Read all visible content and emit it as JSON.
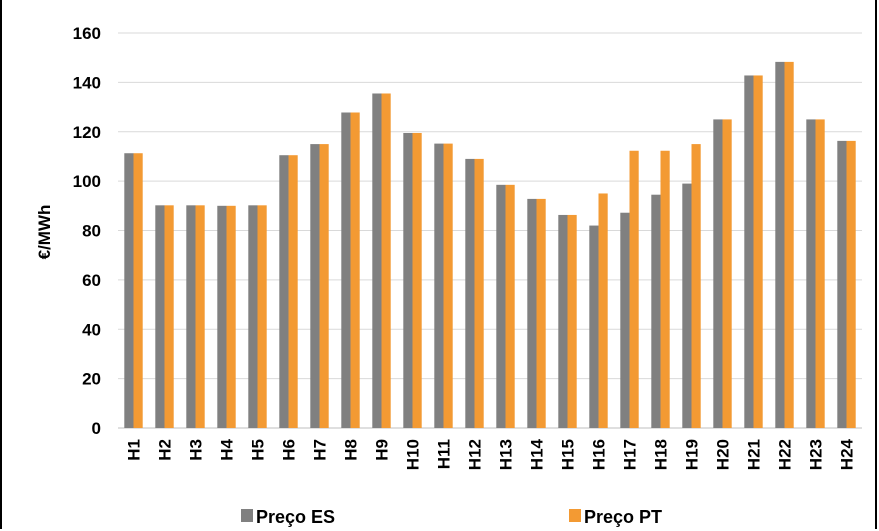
{
  "chart_data": {
    "type": "bar",
    "categories": [
      "H1",
      "H2",
      "H3",
      "H4",
      "H5",
      "H6",
      "H7",
      "H8",
      "H9",
      "H10",
      "H11",
      "H12",
      "H13",
      "H14",
      "H15",
      "H16",
      "H17",
      "H18",
      "H19",
      "H20",
      "H21",
      "H22",
      "H23",
      "H24"
    ],
    "series": [
      {
        "name": "Preço ES",
        "color": "#808080",
        "values": [
          111.3,
          90.2,
          90.2,
          90.0,
          90.2,
          110.5,
          115.0,
          127.8,
          135.5,
          119.5,
          115.2,
          109.0,
          98.5,
          92.8,
          86.3,
          82.0,
          87.2,
          94.5,
          99.0,
          125.0,
          142.8,
          148.3,
          125.0,
          116.3
        ]
      },
      {
        "name": "Preço PT",
        "color": "#f39a33",
        "values": [
          111.3,
          90.2,
          90.2,
          90.0,
          90.2,
          110.5,
          115.0,
          127.8,
          135.5,
          119.5,
          115.2,
          109.0,
          98.5,
          92.8,
          86.3,
          95.0,
          112.3,
          112.3,
          115.0,
          125.0,
          142.8,
          148.3,
          125.0,
          116.3
        ]
      }
    ],
    "ylabel": "€/MWh",
    "ylim": [
      0,
      160
    ],
    "yticks": [
      0,
      20,
      40,
      60,
      80,
      100,
      120,
      140,
      160
    ],
    "grid": true,
    "legend_position": "bottom"
  }
}
